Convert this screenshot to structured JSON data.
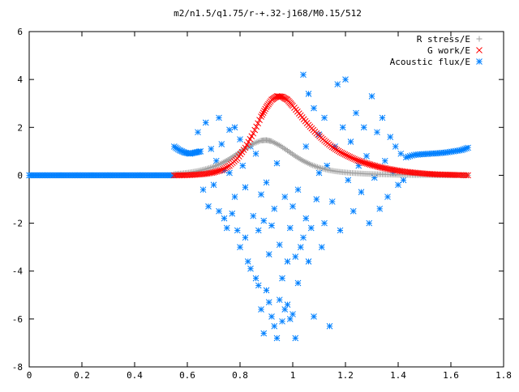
{
  "chart_data": {
    "type": "scatter",
    "title": "m2/n1.5/q1.75/r-+.32-j168/M0.15/512",
    "xlabel": "",
    "ylabel": "",
    "xlim": [
      0,
      1.8
    ],
    "ylim": [
      -8,
      6
    ],
    "grid": false,
    "legend_position": "top-right",
    "x_ticks": [
      "0",
      "0.2",
      "0.4",
      "0.6",
      "0.8",
      "1",
      "1.2",
      "1.4",
      "1.6",
      "1.8"
    ],
    "y_ticks": [
      "-8",
      "-6",
      "-4",
      "-2",
      "0",
      "2",
      "4",
      "6"
    ],
    "series": [
      {
        "name": "R stress/E",
        "marker": "plus",
        "color": "#a0a0a0",
        "x": [
          0.55,
          0.58,
          0.61,
          0.64,
          0.67,
          0.7,
          0.73,
          0.76,
          0.79,
          0.82,
          0.85,
          0.88,
          0.9,
          0.92,
          0.95,
          0.98,
          1.01,
          1.04,
          1.07,
          1.1,
          1.13,
          1.16,
          1.19,
          1.22,
          1.25,
          1.28,
          1.31,
          1.34,
          1.37,
          1.4,
          1.43,
          1.46,
          1.49,
          1.52,
          1.55,
          1.58,
          1.61,
          1.64,
          1.665
        ],
        "y": [
          0.05,
          0.08,
          0.12,
          0.18,
          0.26,
          0.36,
          0.5,
          0.68,
          0.9,
          1.12,
          1.32,
          1.45,
          1.47,
          1.42,
          1.25,
          1.03,
          0.8,
          0.6,
          0.44,
          0.32,
          0.23,
          0.17,
          0.13,
          0.1,
          0.08,
          0.06,
          0.05,
          0.04,
          0.03,
          0.02,
          0.02,
          0.01,
          0.01,
          0.01,
          0.0,
          0.0,
          0.0,
          0.0,
          0.0
        ]
      },
      {
        "name": "G work/E",
        "marker": "cross",
        "color": "#ff0000",
        "x": [
          0.55,
          0.58,
          0.61,
          0.64,
          0.67,
          0.7,
          0.73,
          0.76,
          0.79,
          0.82,
          0.85,
          0.88,
          0.9,
          0.92,
          0.94,
          0.96,
          0.98,
          1.0,
          1.03,
          1.06,
          1.09,
          1.12,
          1.15,
          1.18,
          1.21,
          1.24,
          1.27,
          1.3,
          1.33,
          1.36,
          1.39,
          1.42,
          1.45,
          1.48,
          1.51,
          1.54,
          1.57,
          1.6,
          1.63,
          1.665
        ],
        "y": [
          0.0,
          0.0,
          0.01,
          0.03,
          0.06,
          0.12,
          0.22,
          0.4,
          0.7,
          1.15,
          1.75,
          2.45,
          2.85,
          3.15,
          3.3,
          3.28,
          3.15,
          2.9,
          2.5,
          2.1,
          1.75,
          1.45,
          1.18,
          0.97,
          0.8,
          0.65,
          0.53,
          0.43,
          0.34,
          0.27,
          0.21,
          0.16,
          0.12,
          0.09,
          0.06,
          0.04,
          0.03,
          0.02,
          0.01,
          0.0
        ]
      },
      {
        "name": "Acoustic flux/E",
        "marker": "star",
        "color": "#0080ff",
        "baseline_left": {
          "x": [
            0.0,
            0.05,
            0.1,
            0.15,
            0.2,
            0.25,
            0.3,
            0.35,
            0.4,
            0.45,
            0.5,
            0.55
          ],
          "y": [
            0,
            0,
            0,
            0,
            0,
            0,
            0,
            0,
            0,
            0,
            0,
            0
          ]
        },
        "left_band": {
          "x": [
            0.55,
            0.57,
            0.59,
            0.61,
            0.63,
            0.65
          ],
          "y": [
            1.2,
            1.05,
            0.95,
            0.9,
            0.95,
            1.0
          ]
        },
        "right_band": {
          "x": [
            1.43,
            1.46,
            1.49,
            1.52,
            1.55,
            1.58,
            1.61,
            1.64,
            1.665
          ],
          "y": [
            0.75,
            0.85,
            0.88,
            0.9,
            0.92,
            0.95,
            1.0,
            1.05,
            1.15
          ]
        },
        "scatter": {
          "x": [
            0.64,
            0.66,
            0.67,
            0.68,
            0.69,
            0.7,
            0.71,
            0.72,
            0.72,
            0.73,
            0.74,
            0.74,
            0.75,
            0.76,
            0.76,
            0.77,
            0.78,
            0.78,
            0.79,
            0.8,
            0.8,
            0.81,
            0.82,
            0.82,
            0.83,
            0.84,
            0.84,
            0.85,
            0.86,
            0.86,
            0.87,
            0.87,
            0.88,
            0.88,
            0.89,
            0.89,
            0.9,
            0.9,
            0.91,
            0.91,
            0.92,
            0.92,
            0.93,
            0.93,
            0.94,
            0.94,
            0.95,
            0.95,
            0.96,
            0.96,
            0.97,
            0.97,
            0.98,
            0.98,
            0.99,
            0.99,
            1.0,
            1.0,
            1.01,
            1.01,
            1.02,
            1.02,
            1.03,
            1.04,
            1.04,
            1.05,
            1.05,
            1.06,
            1.06,
            1.07,
            1.08,
            1.08,
            1.09,
            1.1,
            1.1,
            1.11,
            1.12,
            1.12,
            1.13,
            1.14,
            1.15,
            1.16,
            1.17,
            1.18,
            1.19,
            1.2,
            1.21,
            1.22,
            1.23,
            1.24,
            1.25,
            1.26,
            1.27,
            1.28,
            1.29,
            1.3,
            1.31,
            1.32,
            1.33,
            1.34,
            1.35,
            1.36,
            1.37,
            1.38,
            1.39,
            1.4,
            1.41,
            1.42
          ],
          "y": [
            1.8,
            -0.6,
            2.2,
            -1.3,
            1.1,
            -0.4,
            0.6,
            -1.5,
            2.4,
            1.3,
            -1.8,
            0.2,
            -2.2,
            1.9,
            0.1,
            -1.6,
            2.0,
            -0.9,
            -2.3,
            1.5,
            -3.0,
            0.4,
            -2.6,
            -0.5,
            -3.6,
            1.2,
            -3.9,
            -1.7,
            -4.3,
            0.9,
            -4.6,
            -2.3,
            -5.6,
            -0.8,
            -6.6,
            -1.9,
            -4.8,
            -0.3,
            -5.3,
            -3.3,
            -5.9,
            -2.1,
            -6.3,
            -1.4,
            -6.8,
            0.5,
            -5.2,
            -2.9,
            -6.1,
            -4.3,
            -5.6,
            -0.9,
            -5.4,
            -3.6,
            -6.0,
            -2.2,
            -5.8,
            -1.3,
            -6.8,
            -3.4,
            -4.5,
            -0.6,
            -3.0,
            -2.6,
            4.2,
            -1.8,
            1.2,
            -3.6,
            3.4,
            -2.2,
            -5.9,
            2.8,
            -1.0,
            0.1,
            1.7,
            -3.0,
            -2.0,
            2.4,
            0.4,
            -6.3,
            -1.1,
            1.2,
            3.8,
            -2.3,
            2.0,
            4.0,
            -0.2,
            1.4,
            -1.5,
            2.6,
            0.4,
            -0.7,
            2.0,
            0.8,
            -2.0,
            3.3,
            -0.1,
            1.8,
            -1.4,
            2.4,
            0.6,
            -0.9,
            1.6,
            0.1,
            1.2,
            -0.4,
            0.9,
            -0.2
          ]
        }
      }
    ]
  }
}
